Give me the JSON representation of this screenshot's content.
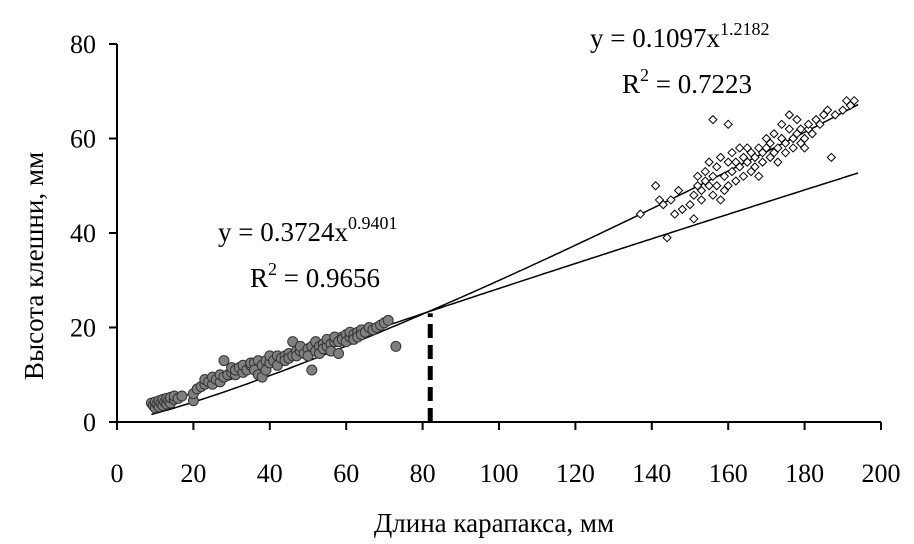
{
  "chart_data": {
    "type": "scatter",
    "xlabel": "Длина карапакса, мм",
    "ylabel": "Высота клешни, мм",
    "xlim": [
      0,
      200
    ],
    "ylim": [
      0,
      80
    ],
    "x_ticks": [
      "0",
      "20",
      "40",
      "60",
      "80",
      "100",
      "120",
      "140",
      "160",
      "180",
      "200"
    ],
    "y_ticks": [
      "0",
      "20",
      "40",
      "60",
      "80"
    ],
    "grid": false,
    "legend": "none",
    "threshold_line": {
      "x": 82,
      "style": "dashed"
    },
    "equations": [
      {
        "id": "small",
        "base": "y = 0.3724x",
        "exp": "0.9401",
        "r2_base": "R",
        "r2_exp": "2",
        "r2_value": " = 0.9656"
      },
      {
        "id": "large",
        "base": "y = 0.1097x",
        "exp": "1.2182",
        "r2_base": "R",
        "r2_exp": "2",
        "r2_value": " = 0.7223"
      }
    ],
    "series": [
      {
        "marker": "filled-circle",
        "color": "#808080",
        "fit": {
          "a": 0.3724,
          "b": 0.9401,
          "x_range": [
            9,
            194
          ]
        },
        "points": [
          [
            9,
            4
          ],
          [
            9.5,
            3.5
          ],
          [
            10,
            3
          ],
          [
            10,
            4.2
          ],
          [
            10.5,
            3.8
          ],
          [
            11,
            3.2
          ],
          [
            11,
            4.5
          ],
          [
            11.5,
            4
          ],
          [
            12,
            3.5
          ],
          [
            12,
            4.8
          ],
          [
            12.5,
            4.2
          ],
          [
            13,
            3.8
          ],
          [
            13,
            5
          ],
          [
            13.5,
            4.5
          ],
          [
            14,
            4
          ],
          [
            14,
            5.2
          ],
          [
            15,
            4.8
          ],
          [
            15,
            5.5
          ],
          [
            16,
            5
          ],
          [
            17,
            5.5
          ],
          [
            20,
            4.5
          ],
          [
            20,
            6
          ],
          [
            21,
            7
          ],
          [
            22,
            7.5
          ],
          [
            23,
            8
          ],
          [
            23,
            9
          ],
          [
            24,
            8.5
          ],
          [
            25,
            8
          ],
          [
            25,
            9.5
          ],
          [
            26,
            9
          ],
          [
            27,
            8.5
          ],
          [
            27,
            10
          ],
          [
            28,
            9.5
          ],
          [
            28,
            13
          ],
          [
            29,
            10
          ],
          [
            30,
            10.5
          ],
          [
            30,
            11.5
          ],
          [
            31,
            10
          ],
          [
            31,
            11
          ],
          [
            32,
            11.5
          ],
          [
            33,
            10.5
          ],
          [
            33,
            12
          ],
          [
            34,
            11
          ],
          [
            35,
            12
          ],
          [
            35,
            12.5
          ],
          [
            36,
            12.5
          ],
          [
            36,
            11
          ],
          [
            37,
            13
          ],
          [
            37,
            10
          ],
          [
            38,
            12
          ],
          [
            38,
            9.5
          ],
          [
            39,
            13
          ],
          [
            39,
            11
          ],
          [
            40,
            12.5
          ],
          [
            40,
            14
          ],
          [
            41,
            13
          ],
          [
            42,
            12
          ],
          [
            42,
            14
          ],
          [
            43,
            13.5
          ],
          [
            44,
            14
          ],
          [
            44,
            13
          ],
          [
            45,
            14.5
          ],
          [
            45,
            13.5
          ],
          [
            46,
            14
          ],
          [
            46,
            17
          ],
          [
            47,
            15
          ],
          [
            47,
            14
          ],
          [
            48,
            15
          ],
          [
            48,
            16
          ],
          [
            49,
            14.5
          ],
          [
            50,
            15.5
          ],
          [
            50,
            14
          ],
          [
            51,
            16
          ],
          [
            51,
            11
          ],
          [
            52,
            15
          ],
          [
            52,
            17
          ],
          [
            53,
            16
          ],
          [
            53,
            14.5
          ],
          [
            54,
            16.5
          ],
          [
            54,
            15.5
          ],
          [
            55,
            16
          ],
          [
            55,
            17.5
          ],
          [
            56,
            16.5
          ],
          [
            56,
            15
          ],
          [
            57,
            17
          ],
          [
            57,
            18
          ],
          [
            58,
            17
          ],
          [
            58,
            14.5
          ],
          [
            59,
            18
          ],
          [
            59,
            17.5
          ],
          [
            60,
            18.5
          ],
          [
            60,
            17
          ],
          [
            61,
            18
          ],
          [
            61,
            19
          ],
          [
            62,
            18.5
          ],
          [
            62,
            17.5
          ],
          [
            63,
            19
          ],
          [
            63,
            18
          ],
          [
            64,
            19.5
          ],
          [
            64,
            18.5
          ],
          [
            65,
            19
          ],
          [
            66,
            20
          ],
          [
            67,
            19.5
          ],
          [
            68,
            20
          ],
          [
            69,
            20.5
          ],
          [
            70,
            21
          ],
          [
            71,
            21.5
          ],
          [
            73,
            16
          ]
        ]
      },
      {
        "marker": "open-diamond",
        "color": "#000000",
        "fit": {
          "a": 0.1097,
          "b": 1.2182,
          "x_range": [
            9,
            194
          ]
        },
        "points": [
          [
            137,
            44
          ],
          [
            141,
            50
          ],
          [
            142,
            47
          ],
          [
            143,
            46
          ],
          [
            144,
            39
          ],
          [
            145,
            47
          ],
          [
            146,
            44
          ],
          [
            147,
            49
          ],
          [
            148,
            45
          ],
          [
            150,
            46
          ],
          [
            151,
            43
          ],
          [
            151,
            48
          ],
          [
            152,
            50
          ],
          [
            152,
            52
          ],
          [
            153,
            49
          ],
          [
            153,
            47
          ],
          [
            154,
            51
          ],
          [
            154,
            53
          ],
          [
            155,
            50
          ],
          [
            155,
            55
          ],
          [
            156,
            48
          ],
          [
            156,
            52
          ],
          [
            156,
            64
          ],
          [
            157,
            54
          ],
          [
            157,
            50
          ],
          [
            158,
            47
          ],
          [
            158,
            56
          ],
          [
            159,
            52
          ],
          [
            159,
            49
          ],
          [
            160,
            55
          ],
          [
            160,
            50
          ],
          [
            160,
            63
          ],
          [
            161,
            53
          ],
          [
            161,
            57
          ],
          [
            162,
            51
          ],
          [
            162,
            55
          ],
          [
            163,
            54
          ],
          [
            163,
            58
          ],
          [
            164,
            52
          ],
          [
            164,
            56
          ],
          [
            165,
            55
          ],
          [
            165,
            58
          ],
          [
            166,
            53
          ],
          [
            166,
            57
          ],
          [
            167,
            56
          ],
          [
            167,
            54
          ],
          [
            168,
            58
          ],
          [
            168,
            52
          ],
          [
            169,
            57
          ],
          [
            169,
            55
          ],
          [
            170,
            58
          ],
          [
            170,
            60
          ],
          [
            171,
            56
          ],
          [
            171,
            59
          ],
          [
            172,
            57
          ],
          [
            172,
            61
          ],
          [
            173,
            58
          ],
          [
            173,
            55
          ],
          [
            174,
            60
          ],
          [
            174,
            63
          ],
          [
            175,
            59
          ],
          [
            175,
            57
          ],
          [
            176,
            62
          ],
          [
            176,
            65
          ],
          [
            177,
            60
          ],
          [
            177,
            58
          ],
          [
            178,
            61
          ],
          [
            178,
            64
          ],
          [
            179,
            59
          ],
          [
            179,
            62
          ],
          [
            180,
            60
          ],
          [
            180,
            58
          ],
          [
            181,
            62
          ],
          [
            181,
            63
          ],
          [
            182,
            61
          ],
          [
            183,
            64
          ],
          [
            184,
            63
          ],
          [
            185,
            65
          ],
          [
            186,
            66
          ],
          [
            187,
            56
          ],
          [
            188,
            65
          ],
          [
            190,
            66
          ],
          [
            191,
            68
          ],
          [
            192,
            67
          ],
          [
            193,
            68
          ]
        ]
      }
    ]
  }
}
